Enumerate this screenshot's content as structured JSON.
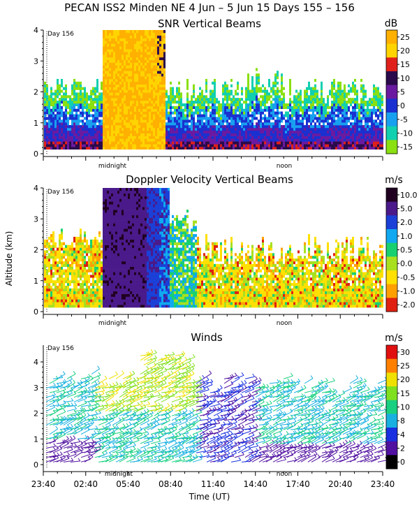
{
  "header": {
    "title": "PECAN ISS2 Minden NE    4 Jun –   5 Jun 15 Days 155 – 156"
  },
  "day_marker": "Day 156",
  "time_markers": {
    "midnight": "midnight",
    "noon": "noon"
  },
  "y_axis_label": "Altitude (km)",
  "x_axis_label": "Time (UT)",
  "x_ticks": [
    "23:40",
    "02:40",
    "05:40",
    "08:40",
    "11:40",
    "14:40",
    "17:40",
    "20:40",
    "23:40"
  ],
  "chart_data": [
    {
      "type": "heatmap",
      "title": "SNR Vertical Beams",
      "ylim": [
        0,
        4
      ],
      "y_ticks": [
        "0",
        "1",
        "2",
        "3",
        "4"
      ],
      "colorbar": {
        "unit": "dB",
        "labels": [
          "25",
          "20",
          "15",
          "10",
          "5",
          "0",
          "-5",
          "-10",
          "-15"
        ],
        "colors": [
          "#ffb000",
          "#ffd400",
          "#e0201a",
          "#2a0a4a",
          "#6a1aa0",
          "#1a30d0",
          "#18a0f0",
          "#10d0b0",
          "#8ae010"
        ]
      }
    },
    {
      "type": "heatmap",
      "title": "Doppler Velocity Vertical Beams",
      "ylim": [
        0,
        4
      ],
      "y_ticks": [
        "0",
        "1",
        "2",
        "3",
        "4"
      ],
      "colorbar": {
        "unit": "m/s",
        "labels": [
          "10.0",
          "5.0",
          "2.0",
          "1.0",
          "0.5",
          "0.0",
          "-0.5",
          "-1.0",
          "-2.0"
        ],
        "colors": [
          "#200020",
          "#4a1a8a",
          "#1a40d8",
          "#10a8f0",
          "#18d070",
          "#a8e020",
          "#ffe000",
          "#ffa000",
          "#e02010"
        ]
      }
    },
    {
      "type": "scatter",
      "title": "Winds",
      "ylim": [
        0,
        4.5
      ],
      "y_ticks": [
        "0",
        "1",
        "2",
        "3",
        "4"
      ],
      "colorbar": {
        "unit": "m/s",
        "labels": [
          "30",
          "25",
          "20",
          "15",
          "10",
          "8",
          "4",
          "2",
          "0"
        ],
        "colors": [
          "#e01010",
          "#ff8000",
          "#f0e000",
          "#80e020",
          "#18d080",
          "#18b0e0",
          "#1830e0",
          "#5010a0",
          "#000000"
        ]
      }
    }
  ]
}
